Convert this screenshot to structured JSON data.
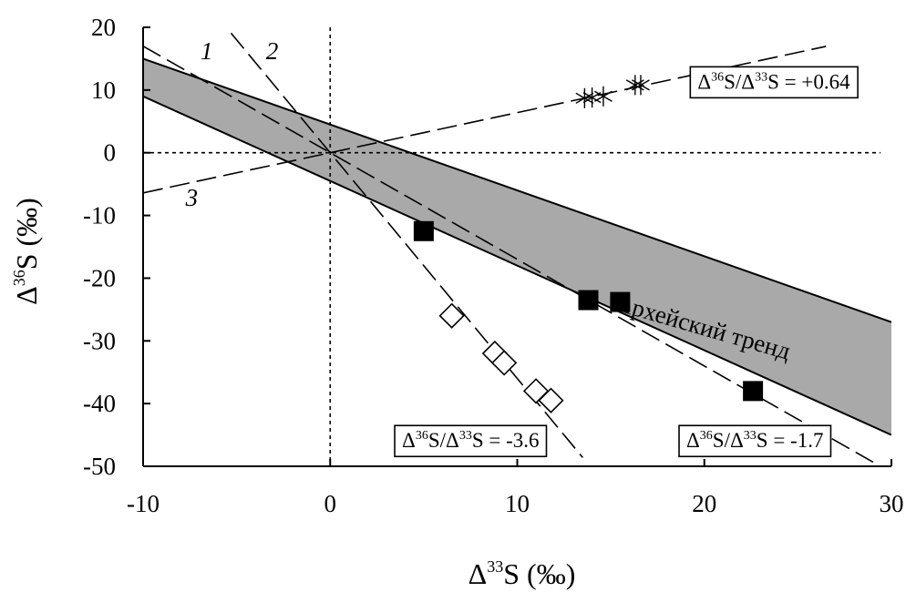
{
  "chart_data": {
    "type": "scatter",
    "xlabel": {
      "main": "Δ",
      "sup": "33",
      "rest": "S (‰)"
    },
    "ylabel": {
      "main": "Δ",
      "sup": "36",
      "rest": "S (‰)"
    },
    "xlim": [
      -10,
      30
    ],
    "ylim": [
      -50,
      20
    ],
    "x_ticks": [
      -10,
      0,
      10,
      20,
      30
    ],
    "y_ticks": [
      20,
      10,
      0,
      -10,
      -20,
      -30,
      -40,
      -50
    ],
    "x_tick_labels": [
      "-10",
      "0",
      "10",
      "20",
      "30"
    ],
    "y_tick_labels": [
      "20",
      "10",
      "0",
      "-10",
      "-20",
      "-30",
      "-40",
      "-50"
    ],
    "grid": false,
    "reference_lines": [
      {
        "axis": "x",
        "value": 0,
        "style": "dotted"
      },
      {
        "axis": "y",
        "value": 0,
        "style": "dotted"
      }
    ],
    "archean_band": {
      "label": "Архейский тренд",
      "upper_line": [
        [
          -10,
          15
        ],
        [
          30,
          -27
        ]
      ],
      "lower_line": [
        [
          -10,
          9
        ],
        [
          30,
          -45
        ]
      ]
    },
    "fit_lines": [
      {
        "number": "1",
        "slope": -1.7,
        "x_range": [
          -10,
          29.5
        ]
      },
      {
        "number": "2",
        "slope": -3.6,
        "x_range": [
          -5.3,
          13.5
        ]
      },
      {
        "number": "3",
        "slope": 0.64,
        "x_range": [
          -10,
          26.5
        ]
      }
    ],
    "line_number_labels": [
      {
        "text": "1",
        "x": -6.6,
        "y": 14.9
      },
      {
        "text": "2",
        "x": -3.1,
        "y": 14.9
      },
      {
        "text": "3",
        "x": -7.4,
        "y": -8.5
      }
    ],
    "slope_labels": [
      {
        "text": "Δ³⁶S/Δ³³S = +0.64",
        "pre": "Δ",
        "sup1": "36",
        "mid": "S/Δ",
        "sup2": "33",
        "post": "S = +0.64",
        "x": 19.2,
        "y": 13.7
      },
      {
        "text": "Δ³⁶S/Δ³³S = -3.6",
        "pre": "Δ",
        "sup1": "36",
        "mid": "S/Δ",
        "sup2": "33",
        "post": "S = -3.6",
        "x": 3.4,
        "y": -43.5
      },
      {
        "text": "Δ³⁶S/Δ³³S = -1.7",
        "pre": "Δ",
        "sup1": "36",
        "mid": "S/Δ",
        "sup2": "33",
        "post": "S = -1.7",
        "x": 18.6,
        "y": -43.5
      }
    ],
    "series": [
      {
        "marker": "filled-square",
        "color": "#000000",
        "points": [
          [
            5.0,
            -12.5
          ],
          [
            13.8,
            -23.5
          ],
          [
            15.5,
            -23.8
          ],
          [
            22.6,
            -38.0
          ]
        ]
      },
      {
        "marker": "open-diamond",
        "color": "#000000",
        "points": [
          [
            6.5,
            -26.0
          ],
          [
            8.8,
            -32.0
          ],
          [
            9.3,
            -33.5
          ],
          [
            11.0,
            -38.0
          ],
          [
            11.8,
            -39.5
          ]
        ]
      },
      {
        "marker": "asterisk",
        "color": "#000000",
        "points": [
          [
            13.6,
            8.7
          ],
          [
            14.0,
            8.8
          ],
          [
            14.6,
            9.0
          ],
          [
            16.3,
            10.8
          ],
          [
            16.6,
            10.8
          ]
        ]
      }
    ],
    "colors": {
      "band_fill": "#a9a9a9",
      "ink": "#000000",
      "background": "#ffffff"
    }
  }
}
